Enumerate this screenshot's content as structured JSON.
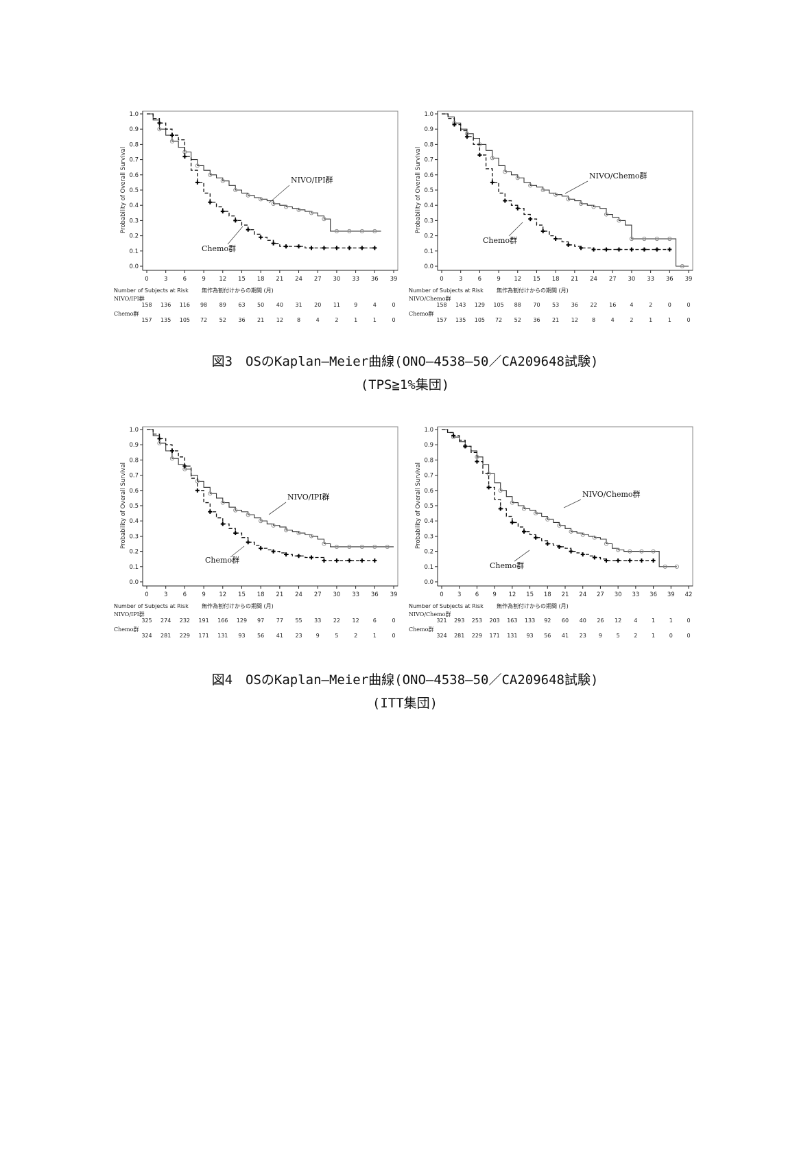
{
  "chart_data": [
    {
      "type": "line",
      "subtype": "kaplan-meier",
      "ylabel": "Probability of Overall Survival",
      "xlabel": "無作為割付けからの期間 (月)",
      "xlim": [
        0,
        39
      ],
      "ylim": [
        0,
        1.0
      ],
      "x_ticks": [
        "0",
        "3",
        "6",
        "9",
        "12",
        "15",
        "18",
        "21",
        "24",
        "27",
        "30",
        "33",
        "36",
        "39"
      ],
      "y_ticks": [
        "0.0",
        "0.1",
        "0.2",
        "0.3",
        "0.4",
        "0.5",
        "0.6",
        "0.7",
        "0.8",
        "0.9",
        "1.0"
      ],
      "series": [
        {
          "name": "NIVO/IPI群",
          "style": "solid",
          "x": [
            0,
            1,
            2,
            3,
            4,
            5,
            6,
            7,
            8,
            9,
            10,
            11,
            12,
            13,
            14,
            15,
            16,
            17,
            18,
            19,
            20,
            21,
            22,
            23,
            24,
            25,
            26,
            27,
            28,
            29,
            30,
            31,
            32,
            33,
            34,
            35,
            36,
            37
          ],
          "y": [
            1.0,
            0.96,
            0.9,
            0.86,
            0.82,
            0.78,
            0.75,
            0.7,
            0.66,
            0.63,
            0.6,
            0.58,
            0.56,
            0.53,
            0.5,
            0.48,
            0.465,
            0.45,
            0.44,
            0.43,
            0.41,
            0.4,
            0.39,
            0.38,
            0.37,
            0.36,
            0.35,
            0.33,
            0.31,
            0.23,
            0.23,
            0.23,
            0.23,
            0.23,
            0.23,
            0.23,
            0.23,
            0.23
          ]
        },
        {
          "name": "Chemo群",
          "style": "dashed",
          "x": [
            0,
            1,
            2,
            3,
            4,
            5,
            6,
            7,
            8,
            9,
            10,
            11,
            12,
            13,
            14,
            15,
            16,
            17,
            18,
            19,
            20,
            21,
            22,
            23,
            24,
            25,
            26,
            27,
            28,
            29,
            30,
            31,
            32,
            33,
            34,
            35,
            36
          ],
          "y": [
            1.0,
            0.97,
            0.94,
            0.9,
            0.86,
            0.83,
            0.72,
            0.63,
            0.55,
            0.48,
            0.42,
            0.39,
            0.36,
            0.33,
            0.3,
            0.27,
            0.24,
            0.21,
            0.19,
            0.17,
            0.15,
            0.13,
            0.13,
            0.13,
            0.13,
            0.12,
            0.12,
            0.12,
            0.12,
            0.12,
            0.12,
            0.12,
            0.12,
            0.12,
            0.12,
            0.12,
            0.12
          ]
        }
      ],
      "annotations": [
        "NIVO/IPI群",
        "Chemo群"
      ],
      "risk_table": {
        "title": "Number of Subjects at Risk",
        "rows": [
          {
            "label": "NIVO/IPI群",
            "values": [
              "158",
              "136",
              "116",
              "98",
              "89",
              "63",
              "50",
              "40",
              "31",
              "20",
              "11",
              "9",
              "4",
              "0"
            ]
          },
          {
            "label": "Chemo群",
            "values": [
              "157",
              "135",
              "105",
              "72",
              "52",
              "36",
              "21",
              "12",
              "8",
              "4",
              "2",
              "1",
              "1",
              "0"
            ]
          }
        ]
      }
    },
    {
      "type": "line",
      "subtype": "kaplan-meier",
      "ylabel": "Probability of Overall Survival",
      "xlabel": "無作為割付けからの期間 (月)",
      "xlim": [
        0,
        39
      ],
      "ylim": [
        0,
        1.0
      ],
      "x_ticks": [
        "0",
        "3",
        "6",
        "9",
        "12",
        "15",
        "18",
        "21",
        "24",
        "27",
        "30",
        "33",
        "36",
        "39"
      ],
      "y_ticks": [
        "0.0",
        "0.1",
        "0.2",
        "0.3",
        "0.4",
        "0.5",
        "0.6",
        "0.7",
        "0.8",
        "0.9",
        "1.0"
      ],
      "series": [
        {
          "name": "NIVO/Chemo群",
          "style": "solid",
          "x": [
            0,
            1,
            2,
            3,
            4,
            5,
            6,
            7,
            8,
            9,
            10,
            11,
            12,
            13,
            14,
            15,
            16,
            17,
            18,
            19,
            20,
            21,
            22,
            23,
            24,
            25,
            26,
            27,
            28,
            29,
            30,
            31,
            32,
            33,
            34,
            35,
            36,
            37,
            38,
            39
          ],
          "y": [
            1.0,
            0.98,
            0.94,
            0.9,
            0.87,
            0.84,
            0.8,
            0.76,
            0.71,
            0.66,
            0.62,
            0.6,
            0.58,
            0.55,
            0.53,
            0.52,
            0.5,
            0.48,
            0.47,
            0.46,
            0.44,
            0.43,
            0.41,
            0.4,
            0.39,
            0.38,
            0.34,
            0.32,
            0.3,
            0.27,
            0.18,
            0.18,
            0.18,
            0.18,
            0.18,
            0.18,
            0.18,
            0.0,
            0.0,
            0.0
          ]
        },
        {
          "name": "Chemo群",
          "style": "dashed",
          "x": [
            0,
            1,
            2,
            3,
            4,
            5,
            6,
            7,
            8,
            9,
            10,
            11,
            12,
            13,
            14,
            15,
            16,
            17,
            18,
            19,
            20,
            21,
            22,
            23,
            24,
            25,
            26,
            27,
            28,
            29,
            30,
            31,
            32,
            33,
            34,
            35,
            36
          ],
          "y": [
            1.0,
            0.97,
            0.93,
            0.89,
            0.85,
            0.8,
            0.73,
            0.64,
            0.55,
            0.48,
            0.43,
            0.4,
            0.38,
            0.34,
            0.31,
            0.27,
            0.23,
            0.2,
            0.18,
            0.16,
            0.14,
            0.13,
            0.12,
            0.12,
            0.11,
            0.11,
            0.11,
            0.11,
            0.11,
            0.11,
            0.11,
            0.11,
            0.11,
            0.11,
            0.11,
            0.11,
            0.11
          ]
        }
      ],
      "annotations": [
        "NIVO/Chemo群",
        "Chemo群"
      ],
      "risk_table": {
        "title": "Number of Subjects at Risk",
        "rows": [
          {
            "label": "NIVO/Chemo群",
            "values": [
              "158",
              "143",
              "129",
              "105",
              "88",
              "70",
              "53",
              "36",
              "22",
              "16",
              "4",
              "2",
              "0",
              "0"
            ]
          },
          {
            "label": "Chemo群",
            "values": [
              "157",
              "135",
              "105",
              "72",
              "52",
              "36",
              "21",
              "12",
              "8",
              "4",
              "2",
              "1",
              "1",
              "0"
            ]
          }
        ]
      }
    },
    {
      "type": "line",
      "subtype": "kaplan-meier",
      "ylabel": "Probability of Overall Survival",
      "xlabel": "無作為割付けからの期間 (月)",
      "xlim": [
        0,
        39
      ],
      "ylim": [
        0,
        1.0
      ],
      "x_ticks": [
        "0",
        "3",
        "6",
        "9",
        "12",
        "15",
        "18",
        "21",
        "24",
        "27",
        "30",
        "33",
        "36",
        "39"
      ],
      "y_ticks": [
        "0.0",
        "0.1",
        "0.2",
        "0.3",
        "0.4",
        "0.5",
        "0.6",
        "0.7",
        "0.8",
        "0.9",
        "1.0"
      ],
      "series": [
        {
          "name": "NIVO/IPI群",
          "style": "solid",
          "x": [
            0,
            1,
            2,
            3,
            4,
            5,
            6,
            7,
            8,
            9,
            10,
            11,
            12,
            13,
            14,
            15,
            16,
            17,
            18,
            19,
            20,
            21,
            22,
            23,
            24,
            25,
            26,
            27,
            28,
            29,
            30,
            31,
            32,
            33,
            34,
            35,
            36,
            37,
            38,
            39
          ],
          "y": [
            1.0,
            0.96,
            0.91,
            0.86,
            0.81,
            0.77,
            0.74,
            0.7,
            0.66,
            0.62,
            0.58,
            0.55,
            0.52,
            0.49,
            0.47,
            0.46,
            0.44,
            0.42,
            0.4,
            0.38,
            0.37,
            0.36,
            0.34,
            0.33,
            0.32,
            0.31,
            0.3,
            0.28,
            0.25,
            0.23,
            0.23,
            0.23,
            0.23,
            0.23,
            0.23,
            0.23,
            0.23,
            0.23,
            0.23,
            0.23
          ]
        },
        {
          "name": "Chemo群",
          "style": "dashed",
          "x": [
            0,
            1,
            2,
            3,
            4,
            5,
            6,
            7,
            8,
            9,
            10,
            11,
            12,
            13,
            14,
            15,
            16,
            17,
            18,
            19,
            20,
            21,
            22,
            23,
            24,
            25,
            26,
            27,
            28,
            29,
            30,
            31,
            32,
            33,
            34,
            35,
            36
          ],
          "y": [
            1.0,
            0.97,
            0.94,
            0.9,
            0.86,
            0.82,
            0.76,
            0.68,
            0.6,
            0.52,
            0.46,
            0.42,
            0.38,
            0.35,
            0.32,
            0.29,
            0.26,
            0.24,
            0.22,
            0.21,
            0.2,
            0.19,
            0.18,
            0.17,
            0.17,
            0.16,
            0.16,
            0.16,
            0.14,
            0.14,
            0.14,
            0.14,
            0.14,
            0.14,
            0.14,
            0.14,
            0.14
          ]
        }
      ],
      "annotations": [
        "NIVO/IPI群",
        "Chemo群"
      ],
      "risk_table": {
        "title": "Number of Subjects at Risk",
        "rows": [
          {
            "label": "NIVO/IPI群",
            "values": [
              "325",
              "274",
              "232",
              "191",
              "166",
              "129",
              "97",
              "77",
              "55",
              "33",
              "22",
              "12",
              "6",
              "0"
            ]
          },
          {
            "label": "Chemo群",
            "values": [
              "324",
              "281",
              "229",
              "171",
              "131",
              "93",
              "56",
              "41",
              "23",
              "9",
              "5",
              "2",
              "1",
              "0"
            ]
          }
        ]
      }
    },
    {
      "type": "line",
      "subtype": "kaplan-meier",
      "ylabel": "Probability of Overall Survival",
      "xlabel": "無作為割付けからの期間 (月)",
      "xlim": [
        0,
        42
      ],
      "ylim": [
        0,
        1.0
      ],
      "x_ticks": [
        "0",
        "3",
        "6",
        "9",
        "12",
        "15",
        "18",
        "21",
        "24",
        "27",
        "30",
        "33",
        "36",
        "39",
        "42"
      ],
      "y_ticks": [
        "0.0",
        "0.1",
        "0.2",
        "0.3",
        "0.4",
        "0.5",
        "0.6",
        "0.7",
        "0.8",
        "0.9",
        "1.0"
      ],
      "series": [
        {
          "name": "NIVO/Chemo群",
          "style": "solid",
          "x": [
            0,
            1,
            2,
            3,
            4,
            5,
            6,
            7,
            8,
            9,
            10,
            11,
            12,
            13,
            14,
            15,
            16,
            17,
            18,
            19,
            20,
            21,
            22,
            23,
            24,
            25,
            26,
            27,
            28,
            29,
            30,
            31,
            32,
            33,
            34,
            35,
            36,
            37,
            38,
            39,
            40
          ],
          "y": [
            1.0,
            0.98,
            0.95,
            0.92,
            0.89,
            0.86,
            0.82,
            0.77,
            0.71,
            0.65,
            0.6,
            0.56,
            0.52,
            0.5,
            0.48,
            0.47,
            0.45,
            0.43,
            0.41,
            0.39,
            0.37,
            0.35,
            0.33,
            0.32,
            0.31,
            0.3,
            0.29,
            0.28,
            0.25,
            0.22,
            0.21,
            0.2,
            0.2,
            0.2,
            0.2,
            0.2,
            0.2,
            0.1,
            0.1,
            0.1,
            0.1
          ]
        },
        {
          "name": "Chemo群",
          "style": "dashed",
          "x": [
            0,
            1,
            2,
            3,
            4,
            5,
            6,
            7,
            8,
            9,
            10,
            11,
            12,
            13,
            14,
            15,
            16,
            17,
            18,
            19,
            20,
            21,
            22,
            23,
            24,
            25,
            26,
            27,
            28,
            29,
            30,
            31,
            32,
            33,
            34,
            35,
            36
          ],
          "y": [
            1.0,
            0.98,
            0.96,
            0.93,
            0.89,
            0.85,
            0.79,
            0.71,
            0.62,
            0.54,
            0.48,
            0.43,
            0.39,
            0.36,
            0.33,
            0.31,
            0.29,
            0.27,
            0.25,
            0.24,
            0.23,
            0.22,
            0.2,
            0.19,
            0.18,
            0.17,
            0.16,
            0.15,
            0.14,
            0.14,
            0.14,
            0.14,
            0.14,
            0.14,
            0.14,
            0.14,
            0.14
          ]
        }
      ],
      "annotations": [
        "NIVO/Chemo群",
        "Chemo群"
      ],
      "risk_table": {
        "title": "Number of Subjects at Risk",
        "rows": [
          {
            "label": "NIVO/Chemo群",
            "values": [
              "321",
              "293",
              "253",
              "203",
              "163",
              "133",
              "92",
              "60",
              "40",
              "26",
              "12",
              "4",
              "1",
              "1",
              "0"
            ]
          },
          {
            "label": "Chemo群",
            "values": [
              "324",
              "281",
              "229",
              "171",
              "131",
              "93",
              "56",
              "41",
              "23",
              "9",
              "5",
              "2",
              "1",
              "0",
              "0"
            ]
          }
        ]
      }
    }
  ],
  "captions": [
    {
      "line1": "図3　OSのKaplan―Meier曲線(ONO―4538―50／CA209648試験)",
      "line2": "(TPS≧1%集団)"
    },
    {
      "line1": "図4　OSのKaplan―Meier曲線(ONO―4538―50／CA209648試験)",
      "line2": "(ITT集団)"
    }
  ]
}
